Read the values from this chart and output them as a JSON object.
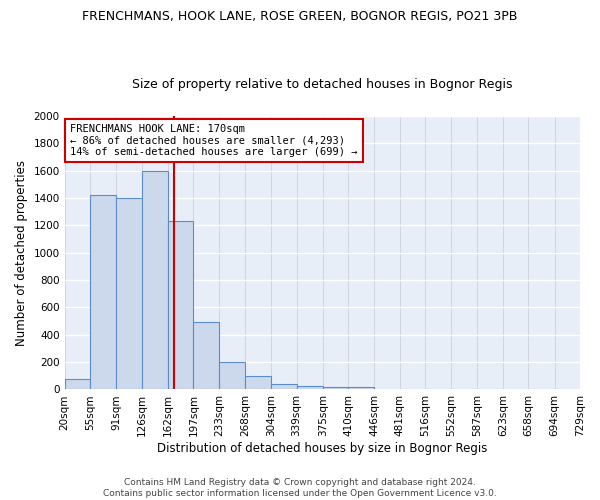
{
  "title1": "FRENCHMANS, HOOK LANE, ROSE GREEN, BOGNOR REGIS, PO21 3PB",
  "title2": "Size of property relative to detached houses in Bognor Regis",
  "xlabel": "Distribution of detached houses by size in Bognor Regis",
  "ylabel": "Number of detached properties",
  "bin_edges": [
    20,
    55,
    91,
    126,
    162,
    197,
    233,
    268,
    304,
    339,
    375,
    410,
    446,
    481,
    516,
    552,
    587,
    623,
    658,
    694,
    729
  ],
  "bar_heights": [
    80,
    1420,
    1400,
    1600,
    1230,
    490,
    200,
    100,
    40,
    25,
    20,
    15,
    0,
    0,
    0,
    0,
    0,
    0,
    0,
    0
  ],
  "bar_color": "#ccd9ec",
  "bar_edge_color": "#5b8dc8",
  "bg_color": "#e8eef8",
  "grid_color": "#f0f0f8",
  "vline_x": 170,
  "vline_color": "#cc0000",
  "annotation_text": "FRENCHMANS HOOK LANE: 170sqm\n← 86% of detached houses are smaller (4,293)\n14% of semi-detached houses are larger (699) →",
  "annotation_box_color": "#ffffff",
  "annotation_box_edge": "#cc0000",
  "ylim": [
    0,
    2000
  ],
  "yticks": [
    0,
    200,
    400,
    600,
    800,
    1000,
    1200,
    1400,
    1600,
    1800,
    2000
  ],
  "footnote": "Contains HM Land Registry data © Crown copyright and database right 2024.\nContains public sector information licensed under the Open Government Licence v3.0.",
  "title1_fontsize": 9,
  "title2_fontsize": 9,
  "xlabel_fontsize": 8.5,
  "ylabel_fontsize": 8.5,
  "tick_fontsize": 7.5,
  "annot_fontsize": 7.5,
  "footnote_fontsize": 6.5
}
